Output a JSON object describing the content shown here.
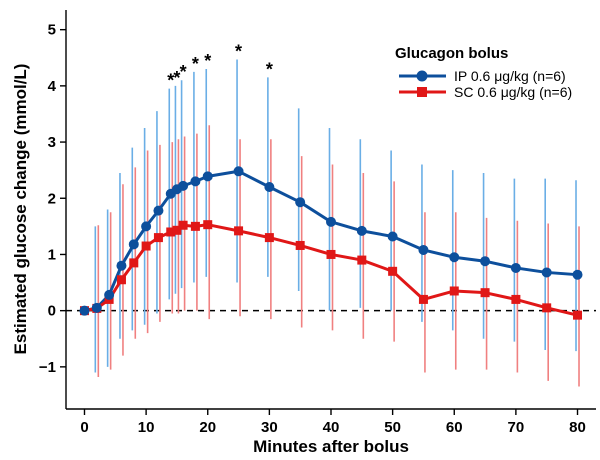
{
  "chart_data": {
    "type": "line",
    "xlabel": "Minutes after bolus",
    "ylabel": "Estimated glucose change (mmol/L)",
    "xlim": [
      -3,
      83
    ],
    "ylim": [
      -1.75,
      5.35
    ],
    "xticks": [
      0,
      10,
      20,
      30,
      40,
      50,
      60,
      70,
      80
    ],
    "yticks": [
      -1,
      0,
      1,
      2,
      3,
      4,
      5
    ],
    "ytick_labels": [
      "−1",
      "0",
      "1",
      "2",
      "3",
      "4",
      "5"
    ],
    "reference_line": {
      "y": 0,
      "style": "dashed"
    },
    "legend": {
      "title": "Glucagon bolus",
      "position": "top-right"
    },
    "series": [
      {
        "name": "IP 0.6 μg/kg (n=6)",
        "color": "#0d4f9c",
        "bar_color": "#6aaee6",
        "marker": "circle",
        "x": [
          0,
          2,
          4,
          6,
          8,
          10,
          12,
          14,
          15,
          16,
          18,
          20,
          25,
          30,
          35,
          40,
          45,
          50,
          55,
          60,
          65,
          70,
          75,
          80
        ],
        "y": [
          0,
          0.05,
          0.28,
          0.8,
          1.18,
          1.5,
          1.78,
          2.08,
          2.16,
          2.22,
          2.3,
          2.39,
          2.48,
          2.2,
          1.93,
          1.58,
          1.42,
          1.32,
          1.08,
          0.95,
          0.88,
          0.76,
          0.68,
          0.64
        ],
        "ci_low": [
          0,
          -1.1,
          -1.0,
          -0.5,
          -0.35,
          -0.25,
          -0.05,
          0.2,
          0.3,
          0.4,
          0.5,
          0.6,
          0.5,
          0.6,
          0.35,
          0.0,
          0.05,
          0.0,
          -0.2,
          -0.35,
          -0.5,
          -0.55,
          -0.7,
          -0.72
        ],
        "ci_high": [
          0,
          1.5,
          1.8,
          2.45,
          2.9,
          3.25,
          3.55,
          3.95,
          4.0,
          4.1,
          4.25,
          4.3,
          4.47,
          4.15,
          3.6,
          3.25,
          3.05,
          2.85,
          2.6,
          2.5,
          2.45,
          2.35,
          2.35,
          2.32
        ]
      },
      {
        "name": "SC 0.6 μg/kg (n=6)",
        "color": "#e01717",
        "bar_color": "#f08080",
        "marker": "square",
        "x": [
          0,
          2,
          4,
          6,
          8,
          10,
          12,
          14,
          15,
          16,
          18,
          20,
          25,
          30,
          35,
          40,
          45,
          50,
          55,
          60,
          65,
          70,
          75,
          80
        ],
        "y": [
          0,
          0.04,
          0.2,
          0.55,
          0.85,
          1.15,
          1.3,
          1.4,
          1.43,
          1.52,
          1.5,
          1.53,
          1.42,
          1.3,
          1.16,
          1.0,
          0.9,
          0.7,
          0.2,
          0.35,
          0.32,
          0.2,
          0.05,
          -0.08
        ],
        "ci_low": [
          0,
          -1.18,
          -1.05,
          -0.8,
          -0.5,
          -0.4,
          -0.2,
          -0.05,
          -0.05,
          0.0,
          0.0,
          -0.15,
          -0.1,
          -0.15,
          -0.3,
          -0.35,
          -0.5,
          -0.55,
          -1.1,
          -1.05,
          -1.05,
          -1.1,
          -1.25,
          -1.35
        ],
        "ci_high": [
          0,
          1.52,
          1.75,
          2.25,
          2.55,
          2.85,
          2.95,
          3.0,
          3.05,
          3.1,
          3.15,
          3.3,
          3.05,
          3.05,
          2.75,
          2.6,
          2.45,
          2.3,
          1.75,
          1.75,
          1.65,
          1.6,
          1.55,
          1.5
        ]
      }
    ],
    "annotations": [
      {
        "text": "*",
        "x": 14
      },
      {
        "text": "*",
        "x": 15
      },
      {
        "text": "*",
        "x": 16
      },
      {
        "text": "*",
        "x": 18
      },
      {
        "text": "*",
        "x": 20
      },
      {
        "text": "*",
        "x": 25
      },
      {
        "text": "*",
        "x": 30
      }
    ]
  }
}
